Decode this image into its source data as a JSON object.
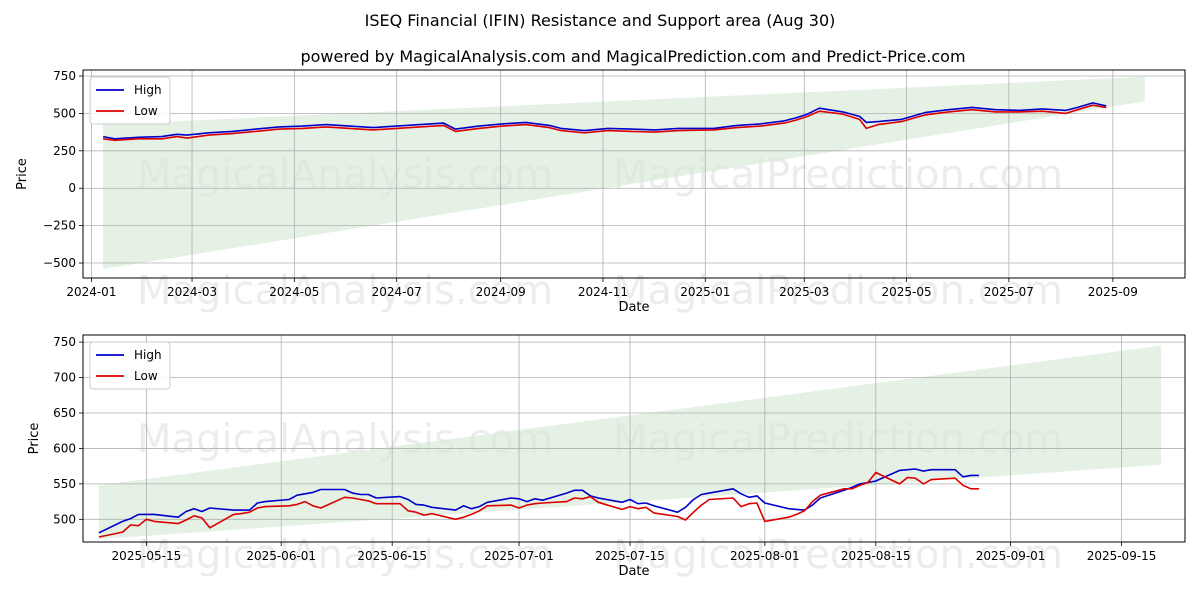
{
  "header": {
    "title": "ISEQ Financial (IFIN) Resistance and Support area (Aug 30)",
    "subtitle": "powered by MagicalAnalysis.com and MagicalPrediction.com and Predict-Price.com"
  },
  "watermarks": [
    "MagicalAnalysis.com",
    "MagicalPrediction.com"
  ],
  "colors": {
    "high": "#0000cc",
    "low": "#dd0000",
    "band": "#d6ead6",
    "grid": "#b0b0b0"
  },
  "chart_data": [
    {
      "type": "line",
      "xlabel": "Date",
      "ylabel": "Price",
      "grid": true,
      "legend": "top-left",
      "xlim": [
        "2023-12-27",
        "2025-10-14"
      ],
      "ylim": [
        -600,
        790
      ],
      "xticks": [
        "2024-01",
        "2024-03",
        "2024-05",
        "2024-07",
        "2024-09",
        "2024-11",
        "2025-01",
        "2025-03",
        "2025-05",
        "2025-07",
        "2025-09"
      ],
      "xtick_dates": [
        "2024-01-01",
        "2024-03-01",
        "2024-05-01",
        "2024-07-01",
        "2024-09-01",
        "2024-11-01",
        "2025-01-01",
        "2025-03-01",
        "2025-05-01",
        "2025-07-01",
        "2025-09-01"
      ],
      "yticks": [
        750,
        500,
        250,
        0,
        -250,
        -500
      ],
      "ytick_labels": [
        "750",
        "500",
        "250",
        "0",
        "−250",
        "−500"
      ],
      "band": {
        "upper": [
          [
            "2024-01-08",
            425
          ],
          [
            "2025-09-20",
            745
          ]
        ],
        "lower": [
          [
            "2024-01-08",
            -540
          ],
          [
            "2025-09-20",
            580
          ]
        ]
      },
      "series": [
        {
          "name": "High",
          "x": [
            "2024-01-08",
            "2024-01-15",
            "2024-01-29",
            "2024-02-12",
            "2024-02-21",
            "2024-02-27",
            "2024-03-11",
            "2024-03-25",
            "2024-04-08",
            "2024-04-22",
            "2024-05-06",
            "2024-05-20",
            "2024-06-03",
            "2024-06-17",
            "2024-07-01",
            "2024-07-15",
            "2024-07-29",
            "2024-08-05",
            "2024-08-19",
            "2024-09-02",
            "2024-09-16",
            "2024-09-30",
            "2024-10-07",
            "2024-10-21",
            "2024-11-04",
            "2024-11-18",
            "2024-12-02",
            "2024-12-16",
            "2025-01-06",
            "2025-01-20",
            "2025-02-03",
            "2025-02-17",
            "2025-02-24",
            "2025-03-03",
            "2025-03-10",
            "2025-03-24",
            "2025-04-03",
            "2025-04-07",
            "2025-04-14",
            "2025-04-28",
            "2025-05-12",
            "2025-05-26",
            "2025-06-09",
            "2025-06-23",
            "2025-07-07",
            "2025-07-21",
            "2025-08-04",
            "2025-08-11",
            "2025-08-20",
            "2025-08-28"
          ],
          "y": [
            345,
            330,
            340,
            345,
            360,
            355,
            370,
            380,
            395,
            410,
            415,
            425,
            415,
            405,
            415,
            425,
            435,
            395,
            415,
            430,
            440,
            420,
            400,
            385,
            400,
            395,
            390,
            400,
            400,
            420,
            430,
            450,
            470,
            495,
            535,
            510,
            480,
            440,
            445,
            460,
            505,
            525,
            540,
            525,
            520,
            530,
            520,
            540,
            570,
            550
          ]
        },
        {
          "name": "Low",
          "x": [
            "2024-01-08",
            "2024-01-15",
            "2024-01-29",
            "2024-02-12",
            "2024-02-21",
            "2024-02-27",
            "2024-03-11",
            "2024-03-25",
            "2024-04-08",
            "2024-04-22",
            "2024-05-06",
            "2024-05-20",
            "2024-06-03",
            "2024-06-17",
            "2024-07-01",
            "2024-07-15",
            "2024-07-29",
            "2024-08-05",
            "2024-08-19",
            "2024-09-02",
            "2024-09-16",
            "2024-09-30",
            "2024-10-07",
            "2024-10-21",
            "2024-11-04",
            "2024-11-18",
            "2024-12-02",
            "2024-12-16",
            "2025-01-06",
            "2025-01-20",
            "2025-02-03",
            "2025-02-17",
            "2025-02-24",
            "2025-03-03",
            "2025-03-10",
            "2025-03-24",
            "2025-04-03",
            "2025-04-07",
            "2025-04-14",
            "2025-04-28",
            "2025-05-12",
            "2025-05-26",
            "2025-06-09",
            "2025-06-23",
            "2025-07-07",
            "2025-07-21",
            "2025-08-04",
            "2025-08-11",
            "2025-08-20",
            "2025-08-28"
          ],
          "y": [
            330,
            320,
            330,
            330,
            345,
            335,
            355,
            365,
            380,
            395,
            400,
            410,
            400,
            390,
            400,
            410,
            420,
            380,
            400,
            415,
            425,
            405,
            385,
            370,
            385,
            380,
            375,
            385,
            390,
            405,
            415,
            435,
            455,
            480,
            515,
            495,
            460,
            400,
            425,
            445,
            490,
            510,
            525,
            510,
            510,
            515,
            500,
            525,
            555,
            540
          ]
        }
      ]
    },
    {
      "type": "line",
      "xlabel": "Date",
      "ylabel": "Price",
      "grid": true,
      "legend": "top-left",
      "xlim": [
        "2025-05-07",
        "2025-09-23"
      ],
      "ylim": [
        468,
        760
      ],
      "xticks": [
        "2025-05-15",
        "2025-06-01",
        "2025-06-15",
        "2025-07-01",
        "2025-07-15",
        "2025-08-01",
        "2025-08-15",
        "2025-09-01",
        "2025-09-15"
      ],
      "yticks": [
        750,
        700,
        650,
        600,
        550,
        500
      ],
      "ytick_labels": [
        "750",
        "700",
        "650",
        "600",
        "550",
        "500"
      ],
      "band": {
        "upper": [
          [
            "2025-05-09",
            548
          ],
          [
            "2025-09-20",
            745
          ]
        ],
        "lower": [
          [
            "2025-05-09",
            472
          ],
          [
            "2025-09-20",
            577
          ]
        ]
      },
      "series": [
        {
          "name": "High",
          "x": [
            "2025-05-09",
            "2025-05-12",
            "2025-05-13",
            "2025-05-14",
            "2025-05-15",
            "2025-05-16",
            "2025-05-19",
            "2025-05-20",
            "2025-05-21",
            "2025-05-22",
            "2025-05-23",
            "2025-05-26",
            "2025-05-27",
            "2025-05-28",
            "2025-05-29",
            "2025-05-30",
            "2025-06-02",
            "2025-06-03",
            "2025-06-04",
            "2025-06-05",
            "2025-06-06",
            "2025-06-09",
            "2025-06-10",
            "2025-06-11",
            "2025-06-12",
            "2025-06-13",
            "2025-06-16",
            "2025-06-17",
            "2025-06-18",
            "2025-06-19",
            "2025-06-20",
            "2025-06-23",
            "2025-06-24",
            "2025-06-25",
            "2025-06-26",
            "2025-06-27",
            "2025-06-30",
            "2025-07-01",
            "2025-07-02",
            "2025-07-03",
            "2025-07-04",
            "2025-07-07",
            "2025-07-08",
            "2025-07-09",
            "2025-07-10",
            "2025-07-11",
            "2025-07-14",
            "2025-07-15",
            "2025-07-16",
            "2025-07-17",
            "2025-07-18",
            "2025-07-21",
            "2025-07-22",
            "2025-07-23",
            "2025-07-24",
            "2025-07-25",
            "2025-07-28",
            "2025-07-29",
            "2025-07-30",
            "2025-07-31",
            "2025-08-01",
            "2025-08-04",
            "2025-08-05",
            "2025-08-06",
            "2025-08-07",
            "2025-08-08",
            "2025-08-11",
            "2025-08-12",
            "2025-08-13",
            "2025-08-14",
            "2025-08-15",
            "2025-08-18",
            "2025-08-19",
            "2025-08-20",
            "2025-08-21",
            "2025-08-22",
            "2025-08-25",
            "2025-08-26",
            "2025-08-27",
            "2025-08-28"
          ],
          "y": [
            481,
            497,
            501,
            507,
            507,
            507,
            503,
            511,
            515,
            511,
            516,
            513,
            513,
            513,
            523,
            525,
            528,
            534,
            536,
            538,
            542,
            542,
            537,
            535,
            535,
            530,
            532,
            528,
            521,
            520,
            517,
            513,
            519,
            515,
            518,
            524,
            530,
            529,
            525,
            529,
            527,
            537,
            541,
            541,
            533,
            530,
            524,
            528,
            522,
            523,
            519,
            510,
            517,
            528,
            535,
            537,
            543,
            536,
            531,
            533,
            523,
            515,
            514,
            513,
            520,
            530,
            541,
            545,
            550,
            552,
            554,
            569,
            570,
            571,
            568,
            570,
            570,
            560,
            562,
            562
          ]
        },
        {
          "name": "Low",
          "x": [
            "2025-05-09",
            "2025-05-12",
            "2025-05-13",
            "2025-05-14",
            "2025-05-15",
            "2025-05-16",
            "2025-05-19",
            "2025-05-20",
            "2025-05-21",
            "2025-05-22",
            "2025-05-23",
            "2025-05-26",
            "2025-05-27",
            "2025-05-28",
            "2025-05-29",
            "2025-05-30",
            "2025-06-02",
            "2025-06-03",
            "2025-06-04",
            "2025-06-05",
            "2025-06-06",
            "2025-06-09",
            "2025-06-10",
            "2025-06-11",
            "2025-06-12",
            "2025-06-13",
            "2025-06-16",
            "2025-06-17",
            "2025-06-18",
            "2025-06-19",
            "2025-06-20",
            "2025-06-23",
            "2025-06-24",
            "2025-06-25",
            "2025-06-26",
            "2025-06-27",
            "2025-06-30",
            "2025-07-01",
            "2025-07-02",
            "2025-07-03",
            "2025-07-04",
            "2025-07-07",
            "2025-07-08",
            "2025-07-09",
            "2025-07-10",
            "2025-07-11",
            "2025-07-14",
            "2025-07-15",
            "2025-07-16",
            "2025-07-17",
            "2025-07-18",
            "2025-07-21",
            "2025-07-22",
            "2025-07-23",
            "2025-07-24",
            "2025-07-25",
            "2025-07-28",
            "2025-07-29",
            "2025-07-30",
            "2025-07-31",
            "2025-08-01",
            "2025-08-04",
            "2025-08-05",
            "2025-08-06",
            "2025-08-07",
            "2025-08-08",
            "2025-08-11",
            "2025-08-12",
            "2025-08-13",
            "2025-08-14",
            "2025-08-15",
            "2025-08-18",
            "2025-08-19",
            "2025-08-20",
            "2025-08-21",
            "2025-08-22",
            "2025-08-25",
            "2025-08-26",
            "2025-08-27",
            "2025-08-28"
          ],
          "y": [
            475,
            482,
            492,
            491,
            500,
            497,
            494,
            499,
            505,
            502,
            488,
            507,
            508,
            510,
            516,
            518,
            519,
            521,
            525,
            519,
            516,
            531,
            530,
            528,
            526,
            522,
            522,
            512,
            510,
            506,
            508,
            500,
            503,
            507,
            512,
            519,
            520,
            516,
            520,
            522,
            523,
            525,
            530,
            529,
            532,
            524,
            514,
            518,
            515,
            517,
            509,
            504,
            499,
            510,
            520,
            528,
            530,
            518,
            522,
            523,
            497,
            503,
            507,
            512,
            525,
            534,
            543,
            543,
            548,
            552,
            566,
            550,
            559,
            558,
            550,
            556,
            558,
            548,
            543,
            543
          ]
        }
      ]
    }
  ]
}
